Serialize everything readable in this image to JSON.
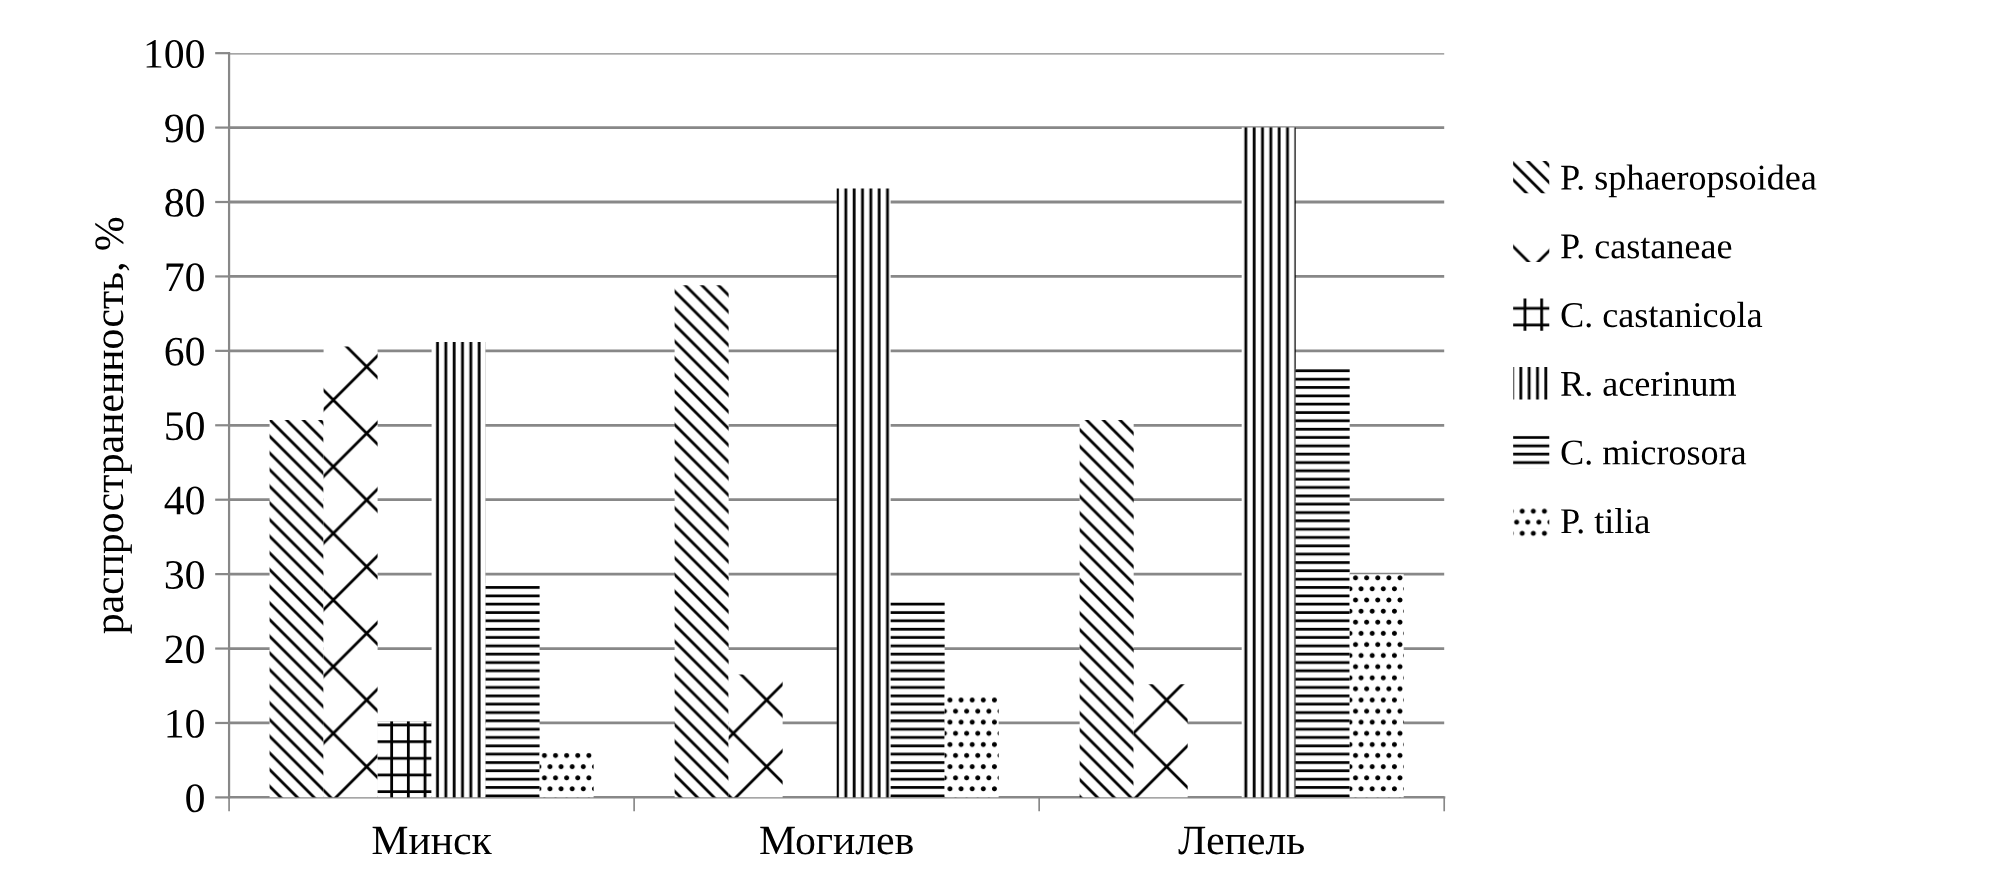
{
  "chart_data": {
    "type": "bar",
    "ylabel": "распространенность, %",
    "categories": [
      "Минск",
      "Могилев",
      "Лепель"
    ],
    "series": [
      {
        "name": "P. sphaeropsoidea",
        "color": "#000000",
        "values": [
          50.7,
          68.8,
          50.7
        ]
      },
      {
        "name": "P. castaneae",
        "color": "#000000",
        "values": [
          60.6,
          16.5,
          15.2
        ]
      },
      {
        "name": "C. castanicola",
        "color": "#000000",
        "values": [
          10.2,
          0,
          0
        ]
      },
      {
        "name": "R. acerinum",
        "color": "#000000",
        "values": [
          61.2,
          81.8,
          90
        ]
      },
      {
        "name": "C. microsora",
        "color": "#000000",
        "values": [
          28.8,
          26.7,
          57.6
        ]
      },
      {
        "name": "P. tilia",
        "color": "#000000",
        "values": [
          6,
          14.1,
          30
        ]
      }
    ],
    "ylim": [
      0,
      100
    ],
    "yticks": [
      0,
      10,
      20,
      30,
      40,
      50,
      60,
      70,
      80,
      90,
      100
    ],
    "grid": "y",
    "legend": "right"
  }
}
